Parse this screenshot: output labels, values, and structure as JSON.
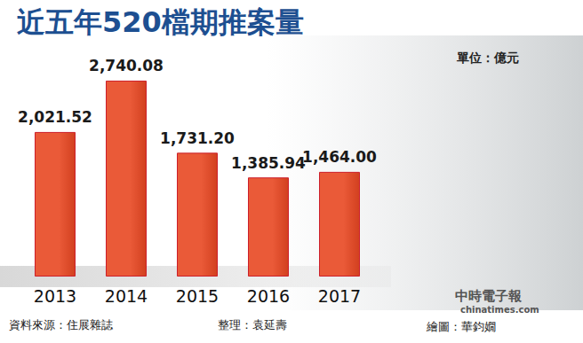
{
  "chart_data": {
    "type": "bar",
    "title": "近五年520檔期推案量",
    "subtitle": "單位：億元",
    "categories": [
      "2013",
      "2014",
      "2015",
      "2016",
      "2017"
    ],
    "values": [
      2021.52,
      2740.08,
      1731.2,
      1385.94,
      1464.0
    ],
    "value_labels": [
      "2,021.52",
      "2,740.08",
      "1,731.20",
      "1,385.94",
      "1,464.00"
    ],
    "color": "#ea5a38",
    "ylim": [
      0,
      3000
    ],
    "yticks": [],
    "grid": false,
    "data_labels": true,
    "tick_labels": "x",
    "annotations": [
      "資料來源：住展雜誌",
      "整理：袁延壽",
      "繪圖：華鈞嫺",
      "中時電子報",
      "chinatimes.com"
    ]
  }
}
